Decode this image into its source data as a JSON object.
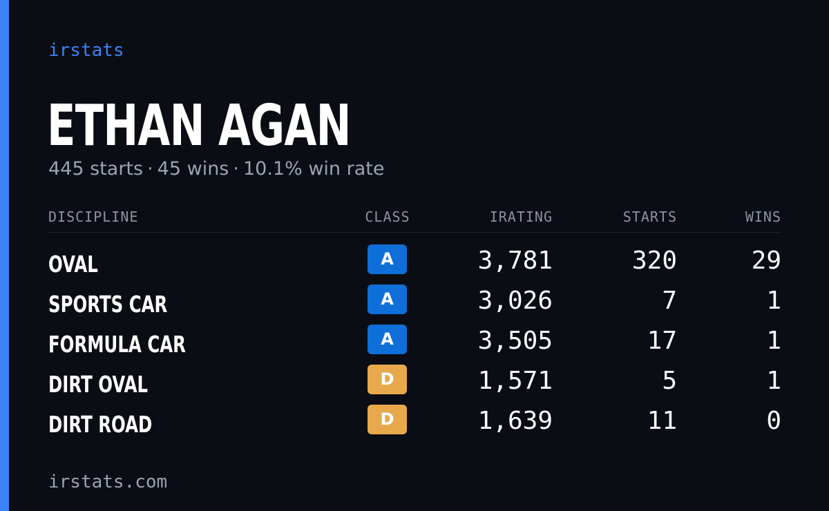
{
  "colors": {
    "background": "#0b0d14",
    "accent": "#3b82f6",
    "muted_text": "#9aa3b2",
    "class_A": "#0f6fd8",
    "class_D": "#e8a94c"
  },
  "brand": "irstats",
  "driver": {
    "name": "ETHAN AGAN",
    "starts_text": "445 starts",
    "wins_text": "45 wins",
    "winrate_text": "10.1% win rate",
    "separator": "·"
  },
  "table": {
    "headers": {
      "discipline": "DISCIPLINE",
      "class": "CLASS",
      "irating": "IRATING",
      "starts": "STARTS",
      "wins": "WINS"
    },
    "rows": [
      {
        "discipline": "OVAL",
        "class": "A",
        "irating": "3,781",
        "starts": "320",
        "wins": "29"
      },
      {
        "discipline": "SPORTS CAR",
        "class": "A",
        "irating": "3,026",
        "starts": "7",
        "wins": "1"
      },
      {
        "discipline": "FORMULA CAR",
        "class": "A",
        "irating": "3,505",
        "starts": "17",
        "wins": "1"
      },
      {
        "discipline": "DIRT OVAL",
        "class": "D",
        "irating": "1,571",
        "starts": "5",
        "wins": "1"
      },
      {
        "discipline": "DIRT ROAD",
        "class": "D",
        "irating": "1,639",
        "starts": "11",
        "wins": "0"
      }
    ]
  },
  "footer": "irstats.com"
}
